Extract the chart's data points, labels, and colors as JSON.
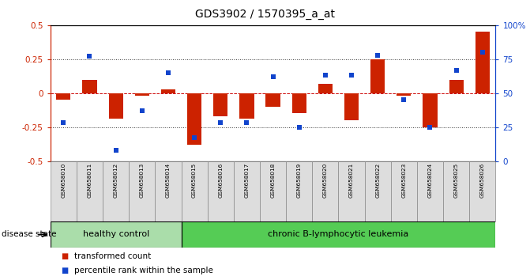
{
  "title": "GDS3902 / 1570395_a_at",
  "samples": [
    "GSM658010",
    "GSM658011",
    "GSM658012",
    "GSM658013",
    "GSM658014",
    "GSM658015",
    "GSM658016",
    "GSM658017",
    "GSM658018",
    "GSM658019",
    "GSM658020",
    "GSM658021",
    "GSM658022",
    "GSM658023",
    "GSM658024",
    "GSM658025",
    "GSM658026"
  ],
  "red_values": [
    -0.05,
    0.1,
    -0.19,
    -0.02,
    0.03,
    -0.38,
    -0.17,
    -0.19,
    -0.1,
    -0.15,
    0.07,
    -0.2,
    0.25,
    -0.02,
    -0.25,
    0.1,
    0.45
  ],
  "blue_values": [
    -0.22,
    0.27,
    -0.42,
    -0.13,
    0.15,
    -0.33,
    -0.22,
    -0.22,
    0.12,
    -0.25,
    0.13,
    0.13,
    0.28,
    -0.05,
    -0.25,
    0.17,
    0.3
  ],
  "healthy_count": 5,
  "healthy_label": "healthy control",
  "disease_label": "chronic B-lymphocytic leukemia",
  "disease_state_label": "disease state",
  "legend_red": "transformed count",
  "legend_blue": "percentile rank within the sample",
  "ylim": [
    -0.5,
    0.5
  ],
  "yticks_left": [
    -0.5,
    -0.25,
    0.0,
    0.25,
    0.5
  ],
  "yticks_right": [
    0,
    25,
    50,
    75,
    100
  ],
  "yticks_right_labels": [
    "0",
    "25",
    "50",
    "75",
    "100%"
  ],
  "bar_color": "#cc2200",
  "square_color": "#1144cc",
  "healthy_bg": "#aaddaa",
  "disease_bg": "#55cc55",
  "label_area_bg": "#dddddd",
  "zero_line_color": "#cc0000",
  "grid_line_color": "#333333",
  "bar_width": 0.55,
  "square_size": 22
}
